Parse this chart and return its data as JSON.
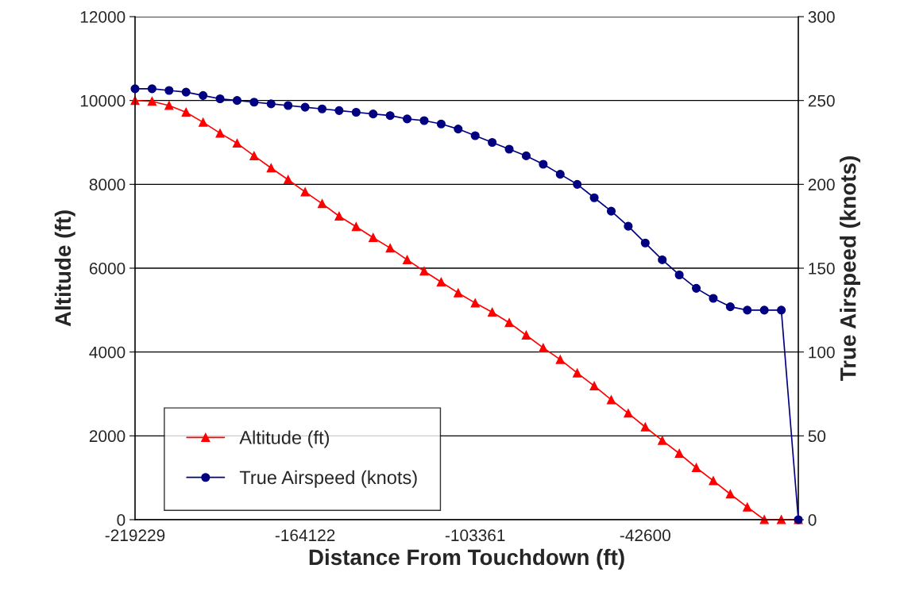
{
  "chart_data": {
    "type": "line",
    "xlabel": "Distance From Touchdown (ft)",
    "ylabel": "Altitude (ft)",
    "y2label": "True Airspeed (knots)",
    "categories": [
      "-219229",
      null,
      null,
      null,
      null,
      null,
      null,
      null,
      null,
      null,
      "-164122",
      null,
      null,
      null,
      null,
      null,
      null,
      null,
      null,
      null,
      "-103361",
      null,
      null,
      null,
      null,
      null,
      null,
      null,
      null,
      null,
      "-42600",
      null,
      null,
      null,
      null,
      null,
      null,
      null,
      null,
      null
    ],
    "series": [
      {
        "name": "Altitude (ft)",
        "color": "#ff0000",
        "marker": "triangle",
        "values": [
          10000,
          9980,
          9880,
          9720,
          9480,
          9220,
          8980,
          8680,
          8390,
          8110,
          7820,
          7540,
          7240,
          6990,
          6730,
          6480,
          6200,
          5930,
          5670,
          5410,
          5170,
          4950,
          4700,
          4400,
          4100,
          3820,
          3500,
          3190,
          2860,
          2540,
          2210,
          1890,
          1580,
          1240,
          930,
          610,
          300,
          0,
          0,
          0
        ]
      },
      {
        "name": "True Airspeed (knots)",
        "color": "#000080",
        "marker": "circle",
        "axis": "y2",
        "values": [
          257,
          257,
          256,
          255,
          253,
          251,
          250,
          249,
          248,
          247,
          246,
          245,
          244,
          243,
          242,
          241,
          239,
          238,
          236,
          233,
          229,
          225,
          221,
          217,
          212,
          206,
          200,
          192,
          184,
          175,
          165,
          155,
          146,
          138,
          132,
          127,
          125,
          125,
          125,
          0
        ]
      }
    ],
    "ylim": [
      0,
      12000
    ],
    "yticks": [
      0,
      2000,
      4000,
      6000,
      8000,
      10000,
      12000
    ],
    "y2lim": [
      0,
      300
    ],
    "y2ticks": [
      0,
      50,
      100,
      150,
      200,
      250,
      300
    ],
    "grid": "y",
    "legend": "bottom left",
    "line_style": "solid"
  }
}
